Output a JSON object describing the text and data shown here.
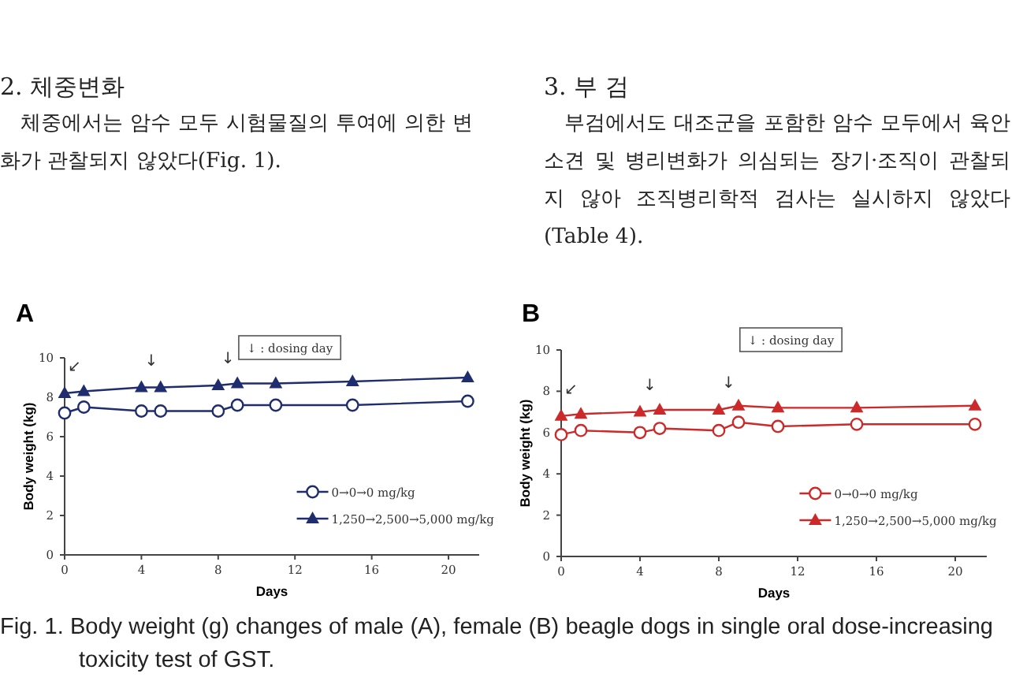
{
  "chart_data": [
    {
      "type": "line",
      "title": "A",
      "xlabel": "Days",
      "ylabel": "Body weight (kg)",
      "xlim": [
        0,
        21.6
      ],
      "xticks": [
        0,
        4,
        8,
        12,
        16,
        20
      ],
      "ylim": [
        0,
        10
      ],
      "yticks": [
        0,
        2,
        4,
        6,
        8,
        10
      ],
      "legend": "bottom right",
      "series": [
        {
          "name": "0→0→0 mg/kg",
          "color": "#1f2d6e",
          "marker": "circle",
          "x": [
            0,
            1,
            4,
            5,
            8,
            9,
            11,
            15,
            21
          ],
          "values": [
            7.2,
            7.5,
            7.3,
            7.3,
            7.3,
            7.6,
            7.6,
            7.6,
            7.8
          ]
        },
        {
          "name": "1,250→2,500→5,000 mg/kg",
          "color": "#1f2d6e",
          "marker": "triangle",
          "x": [
            0,
            1,
            4,
            5,
            8,
            9,
            11,
            15,
            21
          ],
          "values": [
            8.2,
            8.3,
            8.5,
            8.5,
            8.6,
            8.7,
            8.7,
            8.8,
            9.0
          ]
        }
      ],
      "annotations": [
        "2. 체중변화",
        "체중에서는 암수 모두 시험물질의 투여에 의한 변화가 관찰되지 않았다(Fig. 1).",
        "↓ : dosing day",
        "Fig. 1. Body weight (g) changes of male (A), female (B) beagle dogs in single oral dose-increasing toxicity test of GST.",
        {
          "text": "↙",
          "x": 0,
          "y": 8.2
        },
        {
          "text": "↓",
          "x": 4,
          "y": 8.5
        },
        {
          "text": "↓",
          "x": 8,
          "y": 8.6
        }
      ]
    },
    {
      "type": "line",
      "title": "B",
      "xlabel": "Days",
      "ylabel": "Body weight (kg)",
      "xlim": [
        0,
        21.6
      ],
      "xticks": [
        0,
        4,
        8,
        12,
        16,
        20
      ],
      "ylim": [
        0,
        10
      ],
      "yticks": [
        0,
        2,
        4,
        6,
        8,
        10
      ],
      "legend": "bottom right",
      "series": [
        {
          "name": "0→0→0 mg/kg",
          "color": "#cc2a2a",
          "marker": "circle",
          "x": [
            0,
            1,
            4,
            5,
            8,
            9,
            11,
            15,
            21
          ],
          "values": [
            5.9,
            6.1,
            6.0,
            6.2,
            6.1,
            6.5,
            6.3,
            6.4,
            6.4
          ]
        },
        {
          "name": "1,250→2,500→5,000 mg/kg",
          "color": "#cc2a2a",
          "marker": "triangle",
          "x": [
            0,
            1,
            4,
            5,
            8,
            9,
            11,
            15,
            21
          ],
          "values": [
            6.8,
            6.9,
            7.0,
            7.1,
            7.1,
            7.3,
            7.2,
            7.2,
            7.3
          ]
        }
      ],
      "annotations": [
        "3. 부 검",
        "부검에서도 대조군을 포함한 암수 모두에서 육안소견 및 병리변화가 의심되는 장기·조직이 관찰되지 않아 조직병리학적 검사는 실시하지 않았다(Table 4).",
        "↓ : dosing day",
        {
          "text": "↙",
          "x": 0,
          "y": 6.8
        },
        {
          "text": "↓",
          "x": 4,
          "y": 7.0
        },
        {
          "text": "↓",
          "x": 8,
          "y": 7.1
        }
      ]
    }
  ]
}
